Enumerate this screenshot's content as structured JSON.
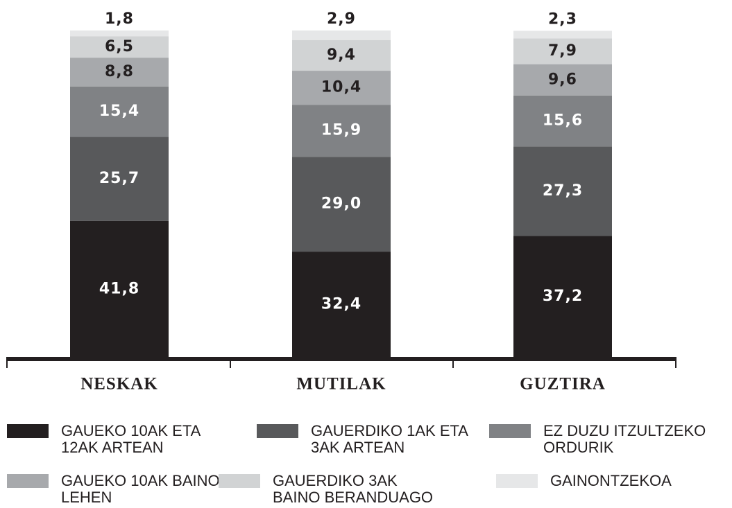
{
  "chart_data": {
    "type": "stacked_bar",
    "categories": [
      "NESKAK",
      "MUTILAK",
      "GUZTIRA"
    ],
    "series": [
      {
        "name": "GAUEKO 10AK ETA 12AK ARTEAN",
        "color": "#231f20",
        "values": [
          41.8,
          32.4,
          37.2
        ],
        "value_labels": [
          "41,8",
          "32,4",
          "37,2"
        ]
      },
      {
        "name": "GAUERDIKO 1AK ETA 3AK ARTEAN",
        "color": "#58595b",
        "values": [
          25.7,
          29.0,
          27.3
        ],
        "value_labels": [
          "25,7",
          "29,0",
          "27,3"
        ]
      },
      {
        "name": "EZ DUZU ITZULTZEKO ORDURIK",
        "color": "#808285",
        "values": [
          15.4,
          15.9,
          15.6
        ],
        "value_labels": [
          "15,4",
          "15,9",
          "15,6"
        ]
      },
      {
        "name": "GAUEKO 10AK BAINO LEHEN",
        "color": "#a7a9ac",
        "values": [
          8.8,
          10.4,
          9.6
        ],
        "value_labels": [
          "8,8",
          "10,4",
          "9,6"
        ]
      },
      {
        "name": "GAUERDIKO 3AK BAINO BERANDUAGO",
        "color": "#d1d3d4",
        "values": [
          6.5,
          9.4,
          7.9
        ],
        "value_labels": [
          "6,5",
          "9,4",
          "7,9"
        ]
      },
      {
        "name": "GAINONTZEKOA",
        "color": "#e6e7e8",
        "values": [
          1.8,
          2.9,
          2.3
        ],
        "value_labels": [
          "1,8",
          "2,9",
          "2,3"
        ]
      }
    ]
  }
}
